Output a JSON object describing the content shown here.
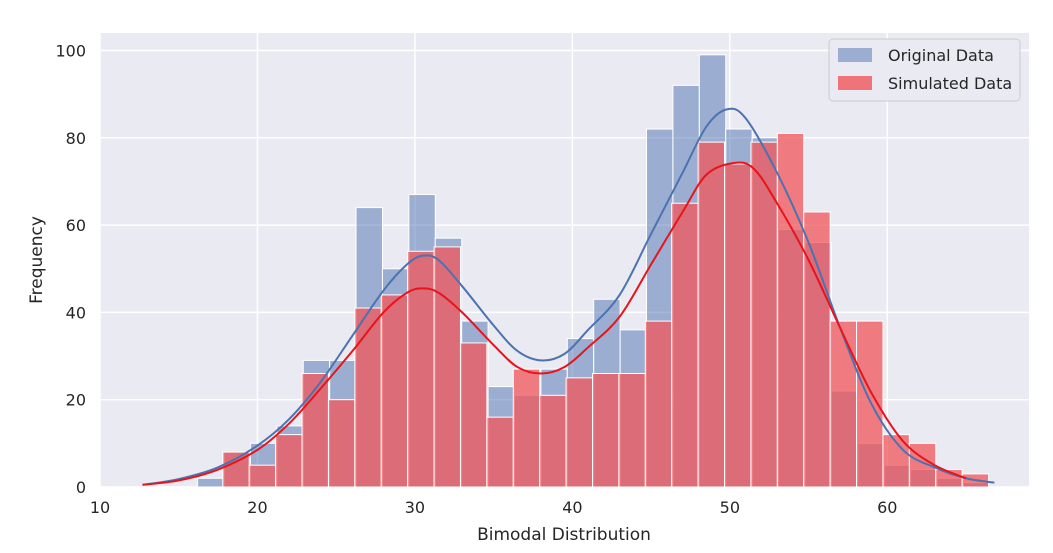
{
  "chart_data": {
    "type": "histogram",
    "xlabel": "Bimodal Distribution",
    "ylabel": "Frequency",
    "xlim": [
      10,
      69
    ],
    "ylim": [
      0,
      104
    ],
    "xticks": [
      10,
      20,
      30,
      40,
      50,
      60
    ],
    "yticks": [
      0,
      20,
      40,
      60,
      80,
      100
    ],
    "grid": true,
    "legend_position": "top-right",
    "series": [
      {
        "name": "Original Data",
        "color": "#4c72b0",
        "bin_start": 16.2,
        "bin_width": 1.677,
        "counts": [
          2,
          8,
          10,
          14,
          29,
          29,
          64,
          50,
          67,
          57,
          38,
          23,
          21,
          27,
          34,
          43,
          36,
          82,
          92,
          99,
          82,
          80,
          59,
          56,
          22,
          10,
          5,
          4,
          2,
          1
        ],
        "kde": [
          [
            12.7,
            0.5
          ],
          [
            15,
            1.8
          ],
          [
            17.5,
            4.5
          ],
          [
            20,
            9.5
          ],
          [
            22,
            15.5
          ],
          [
            24,
            24
          ],
          [
            26,
            34.5
          ],
          [
            28,
            45
          ],
          [
            29.5,
            51
          ],
          [
            30.5,
            53
          ],
          [
            31.5,
            52
          ],
          [
            33,
            46
          ],
          [
            35,
            37
          ],
          [
            36.5,
            31.2
          ],
          [
            38,
            29
          ],
          [
            39.5,
            30.5
          ],
          [
            41,
            36
          ],
          [
            43,
            44
          ],
          [
            45,
            58
          ],
          [
            47,
            72
          ],
          [
            48.5,
            82.5
          ],
          [
            49.8,
            86.5
          ],
          [
            51,
            84.5
          ],
          [
            53,
            72
          ],
          [
            55,
            56
          ],
          [
            57,
            36.5
          ],
          [
            59,
            19
          ],
          [
            61,
            8.5
          ],
          [
            63,
            4.5
          ],
          [
            65,
            2
          ],
          [
            66.8,
            1
          ]
        ]
      },
      {
        "name": "Simulated Data",
        "color": "#f0555a",
        "line_color": "#e8141b",
        "bin_start": 17.8,
        "bin_width": 1.677,
        "counts": [
          8,
          5,
          12,
          26,
          20,
          41,
          44,
          54,
          55,
          33,
          16,
          27,
          21,
          25,
          26,
          26,
          38,
          65,
          79,
          74,
          79,
          81,
          63,
          38,
          38,
          12,
          10,
          4,
          3
        ],
        "kde": [
          [
            12.7,
            0.5
          ],
          [
            15,
            1.5
          ],
          [
            17.5,
            4
          ],
          [
            20,
            8.5
          ],
          [
            22,
            14.5
          ],
          [
            24,
            22.5
          ],
          [
            26,
            31
          ],
          [
            28,
            40
          ],
          [
            29.5,
            44.5
          ],
          [
            30.5,
            45.5
          ],
          [
            31.5,
            44.5
          ],
          [
            33,
            40
          ],
          [
            35,
            32.5
          ],
          [
            36.5,
            27.5
          ],
          [
            38,
            26
          ],
          [
            39.5,
            27.5
          ],
          [
            41,
            32
          ],
          [
            43,
            39
          ],
          [
            45,
            51
          ],
          [
            47,
            63
          ],
          [
            48.5,
            71.5
          ],
          [
            50.2,
            74.2
          ],
          [
            51.5,
            73
          ],
          [
            53,
            65
          ],
          [
            55,
            52
          ],
          [
            57,
            36.5
          ],
          [
            59,
            21.5
          ],
          [
            61,
            10.5
          ],
          [
            63,
            5
          ],
          [
            65,
            2
          ]
        ]
      }
    ]
  }
}
